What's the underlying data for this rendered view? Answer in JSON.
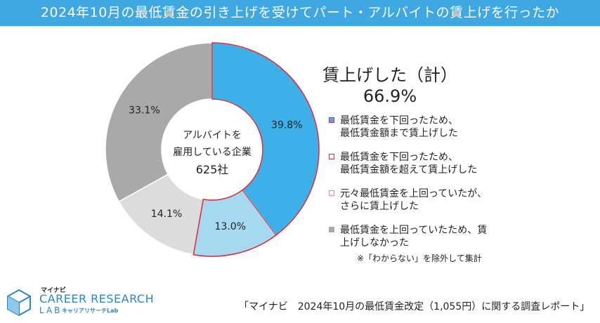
{
  "header": {
    "title": "2024年10月の最低賃金の引き上げを受けてパート・アルバイトの賃上げを行ったか"
  },
  "chart_data": {
    "type": "pie",
    "variant": "donut",
    "center_label": [
      "アルバイトを",
      "雇用している企業",
      "625社"
    ],
    "slices": [
      {
        "label": "最低賃金を下回ったため、最低賃金額まで賃上げした",
        "value": 39.8,
        "value_label": "39.8%",
        "color": "#3db0ea",
        "stroke": "#d32f3c"
      },
      {
        "label": "最低賃金を下回ったため、最低賃金額を超えて賃上げした",
        "value": 13.0,
        "value_label": "13.0%",
        "color": "#a6d9f0",
        "stroke": "#d32f3c"
      },
      {
        "label": "元々最低賃金を上回っていたが、さらに賃上げした",
        "value": 14.1,
        "value_label": "14.1%",
        "color": "#dcdcdc",
        "stroke": "#ffffff"
      },
      {
        "label": "最低賃金を上回っていたため、賃上げしなかった",
        "value": 33.1,
        "value_label": "33.1%",
        "color": "#a9a9a9",
        "stroke": "#ffffff"
      }
    ],
    "total_label": "賃上げした（計）",
    "total_value": "66.9%"
  },
  "legend": [
    {
      "lines": [
        "最低賃金を下回ったため、",
        "最低賃金額まで賃上げした"
      ],
      "fill": "#3db0ea",
      "border": "#d32f3c"
    },
    {
      "lines": [
        "最低賃金を下回ったため、",
        "最低賃金額を超えて賃上げした"
      ],
      "fill": "#ffffff",
      "border": "#d32f3c"
    },
    {
      "lines": [
        "元々最低賃金を上回っていたが、",
        "さらに賃上げした"
      ],
      "fill": "#ffffff",
      "border": "#e68a93"
    },
    {
      "lines": [
        "最低賃金を上回っていたため、賃",
        "上げしなかった"
      ],
      "fill": "#a9a9a9",
      "border": "#a9a9a9"
    }
  ],
  "note": "※「わからない」を除外して集計",
  "logo": {
    "small": "マイナビ",
    "main": "CAREER RESEARCH",
    "lab": "LAB",
    "sub": "キャリアリサーチLab"
  },
  "source": "「マイナビ　2024年10月の最低賃金改定（1,055円）に関する調査レポート」",
  "colors": {
    "accent": "#3fa7e1",
    "outline": "#d32f3c"
  }
}
